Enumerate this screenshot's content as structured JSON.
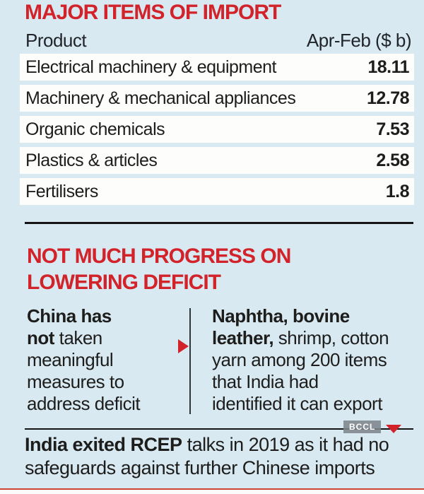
{
  "colors": {
    "background": "#d9e9f2",
    "accent_red": "#d2232a",
    "text_dark": "#1d1d1b",
    "row_white": "#fdfdfb",
    "badge_gray": "#7d858b"
  },
  "imports_section": {
    "title": "MAJOR ITEMS OF IMPORT",
    "header": {
      "product": "Product",
      "value": "Apr-Feb ($ b)"
    },
    "rows": [
      {
        "product": "Electrical machinery & equipment",
        "value": "18.11"
      },
      {
        "product": "Machinery & mechanical appliances",
        "value": "12.78"
      },
      {
        "product": "Organic chemicals",
        "value": "7.53"
      },
      {
        "product": "Plastics & articles",
        "value": "2.58"
      },
      {
        "product": "Fertilisers",
        "value": "1.8"
      }
    ]
  },
  "deficit_section": {
    "title_line1": "NOT MUCH PROGRESS ON",
    "title_line2": "LOWERING DEFICIT",
    "left": {
      "line1_bold": "China has",
      "line2_bold": "not",
      "line2_rest": " taken",
      "line3": "meaningful",
      "line4": "measures to",
      "line5": "address deficit"
    },
    "right": {
      "line1_bold": "Naphtha, bovine",
      "line2_bold": "leather,",
      "line2_rest": " shrimp, cotton",
      "line3": "yarn among 200 items",
      "line4": "that India had",
      "line5": "identified it can export"
    }
  },
  "footer": {
    "watermark": "BCCL",
    "line1_bold": "India exited RCEP",
    "line1_rest": " talks in 2019 as it had no",
    "line2": "safeguards against further Chinese imports"
  },
  "chart_data": {
    "type": "table",
    "title": "MAJOR ITEMS OF IMPORT",
    "columns": [
      "Product",
      "Apr-Feb ($ b)"
    ],
    "rows": [
      [
        "Electrical machinery & equipment",
        18.11
      ],
      [
        "Machinery & mechanical appliances",
        12.78
      ],
      [
        "Organic chemicals",
        7.53
      ],
      [
        "Plastics & articles",
        2.58
      ],
      [
        "Fertilisers",
        1.8
      ]
    ]
  }
}
